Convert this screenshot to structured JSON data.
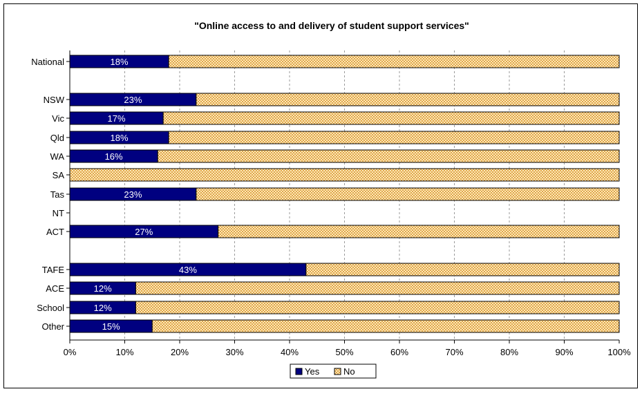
{
  "chart_data": {
    "type": "bar",
    "orientation": "horizontal",
    "stacked": true,
    "title": "\"Online access to and delivery of student support services\"",
    "categories": [
      "National",
      "NSW",
      "Vic",
      "Qld",
      "WA",
      "SA",
      "Tas",
      "NT",
      "ACT",
      "TAFE",
      "ACE",
      "School",
      "Other"
    ],
    "series": [
      {
        "name": "Yes",
        "color": "#000080",
        "values": [
          18,
          23,
          17,
          18,
          16,
          0,
          23,
          null,
          27,
          43,
          12,
          12,
          15
        ],
        "labels": [
          "18%",
          "23%",
          "17%",
          "18%",
          "16%",
          "",
          "23%",
          "",
          "27%",
          "43%",
          "12%",
          "12%",
          "15%"
        ]
      },
      {
        "name": "No",
        "color": "#f5c878",
        "pattern": "checker",
        "values": [
          82,
          77,
          83,
          82,
          84,
          100,
          77,
          null,
          73,
          57,
          88,
          88,
          85
        ]
      }
    ],
    "xaxis": {
      "ticks": [
        "0%",
        "10%",
        "20%",
        "30%",
        "40%",
        "50%",
        "60%",
        "70%",
        "80%",
        "90%",
        "100%"
      ],
      "xlim": [
        0,
        100
      ],
      "grid": "dashed"
    },
    "legend": {
      "position": "bottom",
      "entries": [
        "Yes",
        "No"
      ]
    }
  }
}
